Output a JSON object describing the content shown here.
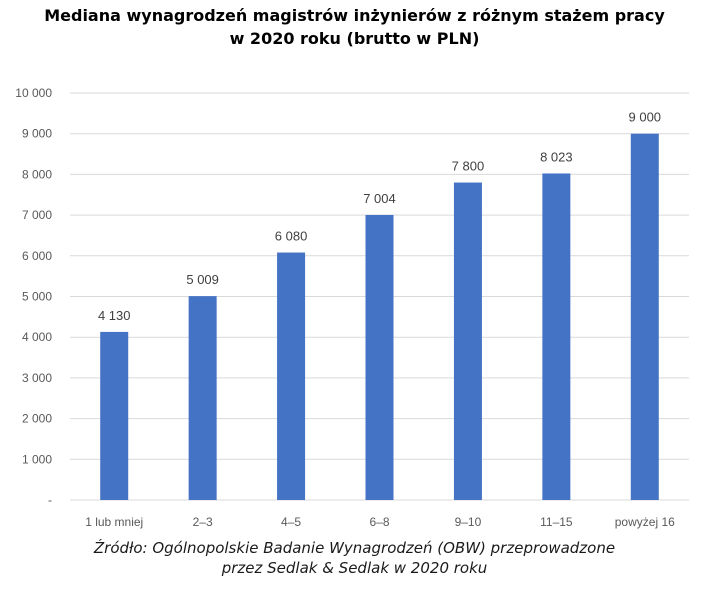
{
  "title_line1": "Mediana wynagrodzeń magistrów inżynierów z różnym stażem pracy",
  "title_line2": "w 2020 roku (brutto w PLN)",
  "source_line1": "Źródło: Ogólnopolskie Badanie Wynagrodzeń (OBW) przeprowadzone",
  "source_line2": "przez Sedlak & Sedlak w 2020 roku",
  "chart_data": {
    "type": "bar",
    "categories": [
      "1 lub mniej",
      "2–3",
      "4–5",
      "6–8",
      "9–10",
      "11–15",
      "powyżej 16"
    ],
    "values": [
      4130,
      5009,
      6080,
      7004,
      7800,
      8023,
      9000
    ],
    "value_labels": [
      "4 130",
      "5 009",
      "6 080",
      "7 004",
      "7 800",
      "8 023",
      "9 000"
    ],
    "ylim": [
      0,
      10000
    ],
    "yticks": [
      0,
      1000,
      2000,
      3000,
      4000,
      5000,
      6000,
      7000,
      8000,
      9000,
      10000
    ],
    "ytick_labels": [
      "-",
      "1 000",
      "2 000",
      "3 000",
      "4 000",
      "5 000",
      "6 000",
      "7 000",
      "8 000",
      "9 000",
      "10 000"
    ],
    "grid": true,
    "legend": "none",
    "bar_color": "#4472c4",
    "grid_color": "#d9d9d9"
  }
}
